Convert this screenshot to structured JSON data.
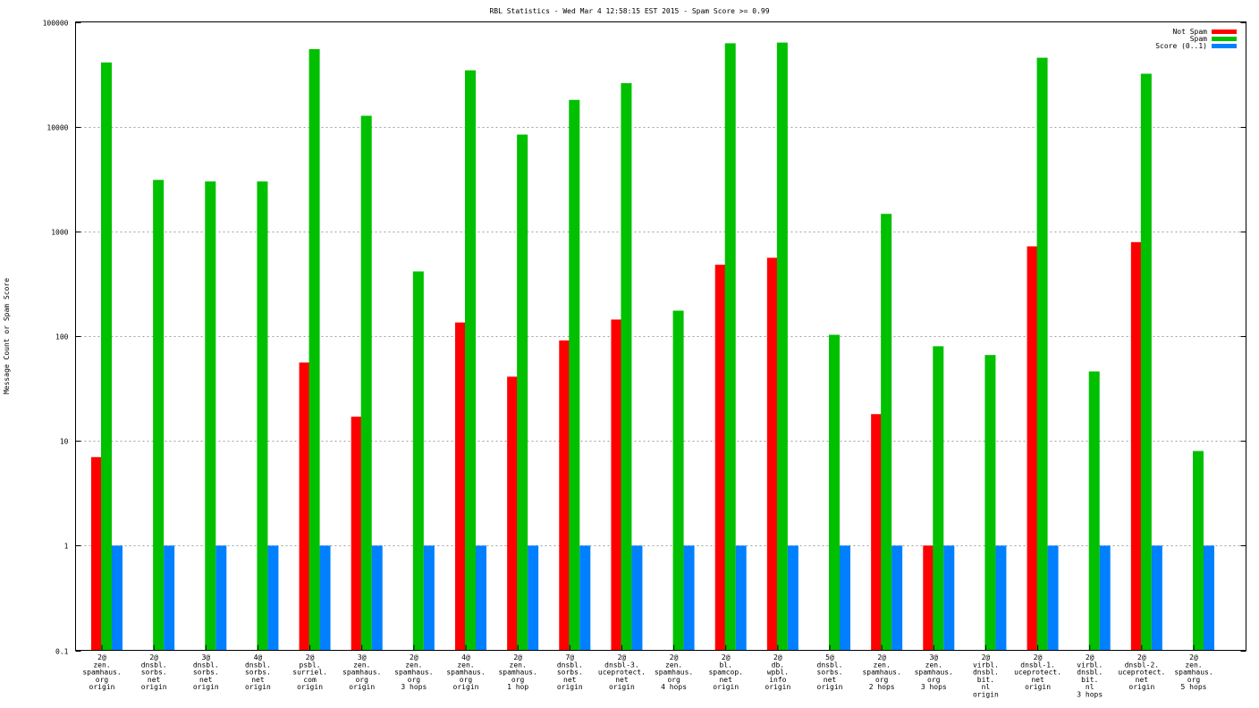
{
  "chart_data": {
    "type": "bar",
    "title": "RBL Statistics - Wed Mar  4 12:58:15 EST 2015 - Spam Score >= 0.99",
    "xlabel": "",
    "ylabel": "Message Count or Spam Score",
    "yscale": "log",
    "ylim": [
      0.1,
      100000
    ],
    "yticks": [
      "0.1",
      "1",
      "10",
      "100",
      "1000",
      "10000",
      "100000"
    ],
    "grid": true,
    "legend_position": "top-right",
    "categories": [
      [
        "2@",
        "zen.",
        "spamhaus.",
        "org",
        "origin"
      ],
      [
        "2@",
        "dnsbl.",
        "sorbs.",
        "net",
        "origin"
      ],
      [
        "3@",
        "dnsbl.",
        "sorbs.",
        "net",
        "origin"
      ],
      [
        "4@",
        "dnsbl.",
        "sorbs.",
        "net",
        "origin"
      ],
      [
        "2@",
        "psbl.",
        "surriel.",
        "com",
        "origin"
      ],
      [
        "3@",
        "zen.",
        "spamhaus.",
        "org",
        "origin"
      ],
      [
        "2@",
        "zen.",
        "spamhaus.",
        "org",
        "3 hops"
      ],
      [
        "4@",
        "zen.",
        "spamhaus.",
        "org",
        "origin"
      ],
      [
        "2@",
        "zen.",
        "spamhaus.",
        "org",
        "1 hop"
      ],
      [
        "7@",
        "dnsbl.",
        "sorbs.",
        "net",
        "origin"
      ],
      [
        "2@",
        "dnsbl-3.",
        "uceprotect.",
        "net",
        "origin"
      ],
      [
        "2@",
        "zen.",
        "spamhaus.",
        "org",
        "4 hops"
      ],
      [
        "2@",
        "bl.",
        "spamcop.",
        "net",
        "origin"
      ],
      [
        "2@",
        "db.",
        "wpbl.",
        "info",
        "origin"
      ],
      [
        "5@",
        "dnsbl.",
        "sorbs.",
        "net",
        "origin"
      ],
      [
        "2@",
        "zen.",
        "spamhaus.",
        "org",
        "2 hops"
      ],
      [
        "3@",
        "zen.",
        "spamhaus.",
        "org",
        "3 hops"
      ],
      [
        "2@",
        "virbl.",
        "dnsbl.",
        "bit.",
        "nl",
        "origin"
      ],
      [
        "2@",
        "dnsbl-1.",
        "uceprotect.",
        "net",
        "origin"
      ],
      [
        "2@",
        "virbl.",
        "dnsbl.",
        "bit.",
        "nl",
        "3 hops"
      ],
      [
        "2@",
        "dnsbl-2.",
        "uceprotect.",
        "net",
        "origin"
      ],
      [
        "2@",
        "zen.",
        "spamhaus.",
        "org",
        "5 hops"
      ]
    ],
    "series": [
      {
        "name": "Not Spam",
        "color": "#ff0000",
        "values": [
          7,
          null,
          null,
          null,
          56,
          17,
          null,
          135,
          41,
          91,
          144,
          null,
          480,
          560,
          null,
          18,
          1,
          null,
          720,
          null,
          790,
          null
        ]
      },
      {
        "name": "Spam",
        "color": "#00c000",
        "values": [
          41000,
          3100,
          3000,
          3000,
          55000,
          12700,
          415,
          34500,
          8400,
          18000,
          26000,
          175,
          62500,
          63500,
          103,
          1470,
          80,
          66,
          45500,
          46,
          32000,
          8
        ]
      },
      {
        "name": "Score (0..1)",
        "color": "#0080ff",
        "values": [
          1,
          1,
          1,
          1,
          1,
          1,
          1,
          1,
          1,
          1,
          1,
          1,
          1,
          1,
          1,
          1,
          1,
          1,
          1,
          1,
          1,
          1
        ]
      }
    ]
  }
}
